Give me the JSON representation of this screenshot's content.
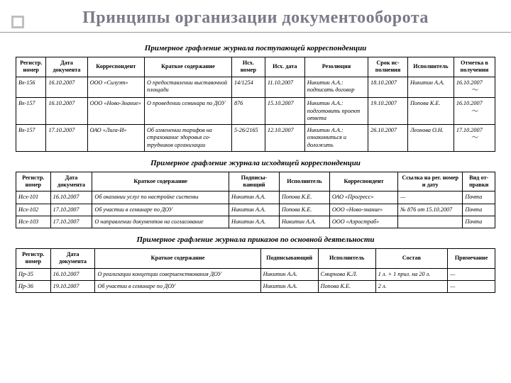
{
  "title": "Принципы организации документооборота",
  "tables": [
    {
      "caption": "Примерное графление журнала поступающей корреспонденции",
      "widths": [
        38,
        52,
        72,
        110,
        42,
        50,
        80,
        50,
        58,
        52
      ],
      "headers": [
        "Ре­гистр. номер",
        "Дата документа",
        "Корреспондент",
        "Краткое содержание",
        "Исх. номер",
        "Исх. дата",
        "Резолюция",
        "Срок ис­полнения",
        "Исполнитель",
        "Отметка в получе­нии"
      ],
      "rows": [
        {
          "cells": [
            "Вх-156",
            "16.10.2007",
            "ООО «Силуэт»",
            "О предоставлении вы­ставочной площади",
            "14/1254",
            "11.10.2007",
            "Никитин А.А.: подписать договор",
            "18.10.2007",
            "Никитин А.А.",
            "16.10.2007"
          ],
          "sig": true
        },
        {
          "cells": [
            "Вх-157",
            "16.10.2007",
            "ООО «Ново-Знание»",
            "О проведении семинара по ДОУ",
            "876",
            "15.10.2007",
            "Никитин А.А.: подготовить проект ответа",
            "19.10.2007",
            "Попова К.Е.",
            "16.10.2007"
          ],
          "sig": true
        },
        {
          "cells": [
            "Вх-157",
            "17.10.2007",
            "ОАО «Лига-И»",
            "Об изменении тарифов на страхование здоровья со­трудников организации",
            "5-26/2165",
            "12.10.2007",
            "Никитин А.А.: ознакомиться и доложить",
            "26.10.2007",
            "Леонова О.Н.",
            "17.10.2007"
          ],
          "sig": true
        }
      ]
    },
    {
      "caption": "Примерное графление журнала исходящей корреспонденции",
      "widths": [
        48,
        58,
        190,
        70,
        70,
        95,
        90,
        45
      ],
      "headers": [
        "Регистр. номер",
        "Дата документа",
        "Краткое содержание",
        "Подписы­вающий",
        "Исполнитель",
        "Корреспондент",
        "Ссылка на рег. номер и дату",
        "Вид от­правки"
      ],
      "rows": [
        {
          "cells": [
            "Исх-101",
            "16.10.2007",
            "Об оказании услуг по настройке системы",
            "Никитин А.А.",
            "Попова К.Е.",
            "ОАО «Прогресс»",
            "—",
            "Почта"
          ]
        },
        {
          "cells": [
            "Исх-102",
            "17.10.2007",
            "Об участии в семинаре по ДОУ",
            "Никитин А.А.",
            "Попова К.Е.",
            "ООО «Ново-знание»",
            "№ 876 от 15.10.2007",
            "Почта"
          ]
        },
        {
          "cells": [
            "Исх-103",
            "17.10.2007",
            "О направлении документов на согласование",
            "Никитин А.А.",
            "Никитин А.А.",
            "ООО «Аэростраб»",
            "",
            "Почта"
          ]
        }
      ]
    },
    {
      "caption": "Примерное графление журнала приказов по основной деятельности",
      "widths": [
        48,
        62,
        230,
        80,
        80,
        100,
        66
      ],
      "headers": [
        "Регистр. номер",
        "Дата документа",
        "Краткое содержание",
        "Подписы­вающий",
        "Исполнитель",
        "Состав",
        "Примечание"
      ],
      "rows": [
        {
          "cells": [
            "Пр-35",
            "16.10.2007",
            "О реализации концепции совершенствования ДОУ",
            "Никитин А.А.",
            "Смирнова К.Л.",
            "1 л. + 1 прил. на 20 л.",
            "—"
          ]
        },
        {
          "cells": [
            "Пр-36",
            "19.10.2007",
            "Об участии в семинаре по ДОУ",
            "Никитин А.А.",
            "Попова К.Е.",
            "2 л.",
            "—"
          ]
        }
      ]
    }
  ]
}
